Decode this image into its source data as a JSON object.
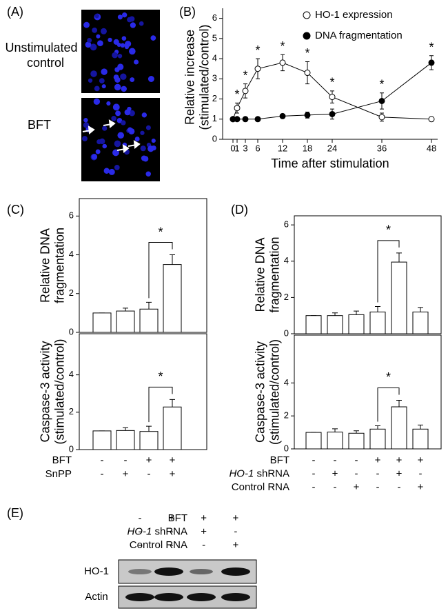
{
  "panel_labels": [
    "(A)",
    "(B)",
    "(C)",
    "(D)",
    "(E)"
  ],
  "panel_a": {
    "rows": [
      {
        "label_lines": [
          "Unstimulated",
          "control"
        ]
      },
      {
        "label_lines": [
          "BFT"
        ]
      }
    ]
  },
  "chart_data": [
    {
      "type": "line",
      "xlabel": "Time after stimulation",
      "ylabel_lines": [
        "Relative increase",
        "(stimulated/control)"
      ],
      "x": [
        0,
        1,
        3,
        6,
        12,
        18,
        24,
        36,
        48
      ],
      "xlim": [
        -2.5,
        49.5
      ],
      "xticks": [
        0,
        1,
        3,
        6,
        12,
        18,
        24,
        36,
        48
      ],
      "ylim": [
        0,
        6.5
      ],
      "yticks": [
        0,
        1,
        2,
        3,
        4,
        5,
        6
      ],
      "legend": "top-right",
      "series": [
        {
          "name": "HO-1 expression",
          "marker": "open-circle",
          "color": "#000000",
          "values": [
            1,
            1.55,
            2.4,
            3.5,
            3.8,
            3.3,
            2.1,
            1.1,
            1.0
          ],
          "errors": [
            0.05,
            0.25,
            0.35,
            0.5,
            0.4,
            0.55,
            0.3,
            0.2,
            0.1
          ],
          "labels": [
            null,
            "*",
            "*",
            "*",
            "*",
            "*",
            "*",
            null,
            null
          ]
        },
        {
          "name": "DNA fragmentation",
          "marker": "filled-circle",
          "color": "#000000",
          "values": [
            1,
            1.0,
            1.0,
            1.0,
            1.15,
            1.2,
            1.25,
            1.9,
            3.8
          ],
          "errors": [
            0.05,
            0.05,
            0.08,
            0.1,
            0.1,
            0.15,
            0.25,
            0.4,
            0.35
          ],
          "labels": [
            null,
            null,
            null,
            null,
            null,
            null,
            null,
            "*",
            "*"
          ]
        }
      ]
    },
    {
      "type": "bar",
      "ylabel_lines": [
        "Relative DNA",
        "fragmentation"
      ],
      "color": "#ffffff",
      "values": [
        1,
        1.1,
        1.2,
        3.5
      ],
      "errors": [
        0,
        0.15,
        0.35,
        0.5
      ],
      "significance": [
        null,
        null,
        null,
        "*"
      ],
      "ylim": [
        0,
        6.9
      ],
      "yticks": [
        0,
        2,
        4,
        6
      ]
    },
    {
      "type": "bar",
      "ylabel_lines": [
        "Caspase-3 activity",
        "(stimulated/control)"
      ],
      "color": "#ffffff",
      "values": [
        1,
        1.02,
        0.97,
        2.28
      ],
      "errors": [
        0,
        0.15,
        0.28,
        0.4
      ],
      "significance": [
        null,
        null,
        null,
        "*"
      ],
      "ylim": [
        0,
        6.2
      ],
      "yticks": [
        0,
        2,
        4
      ]
    },
    {
      "type": "bar",
      "ylabel_lines": [
        "Relative DNA",
        "fragmentation"
      ],
      "color": "#ffffff",
      "values": [
        1,
        1,
        1.05,
        1.2,
        3.95,
        1.2
      ],
      "errors": [
        0,
        0.15,
        0.2,
        0.3,
        0.5,
        0.25
      ],
      "significance": [
        null,
        null,
        null,
        null,
        "*",
        null
      ],
      "ylim": [
        0,
        6.5
      ],
      "yticks": [
        0,
        2,
        4,
        6
      ]
    },
    {
      "type": "bar",
      "ylabel_lines": [
        "Caspase-3 activity",
        "(stimulated/control)"
      ],
      "color": "#ffffff",
      "values": [
        1,
        1.02,
        0.95,
        1.2,
        2.55,
        1.2
      ],
      "errors": [
        0,
        0.2,
        0.15,
        0.2,
        0.4,
        0.25
      ],
      "significance": [
        null,
        null,
        null,
        null,
        "*",
        null
      ],
      "ylim": [
        0,
        6.9
      ],
      "yticks": [
        0,
        2,
        4
      ]
    }
  ],
  "panel_c_conditions": {
    "rows": [
      {
        "label": "BFT",
        "signs": [
          "-",
          "-",
          "+",
          "+"
        ]
      },
      {
        "label": "SnPP",
        "signs": [
          "-",
          "+",
          "-",
          "+"
        ]
      }
    ]
  },
  "panel_d_conditions": {
    "rows": [
      {
        "label": "BFT",
        "signs": [
          "-",
          "-",
          "-",
          "+",
          "+",
          "+"
        ]
      },
      {
        "label_italic": "HO-1",
        "label": "shRNA",
        "signs": [
          "-",
          "+",
          "-",
          "-",
          "+",
          "-"
        ]
      },
      {
        "label": "Control RNA",
        "signs": [
          "-",
          "-",
          "+",
          "-",
          "-",
          "+"
        ]
      }
    ]
  },
  "panel_e": {
    "rows": [
      {
        "label": "BFT",
        "signs": [
          "-",
          "+",
          "+",
          "+"
        ]
      },
      {
        "label_italic": "HO-1",
        "label": "shRNA",
        "signs": [
          "-",
          "-",
          "+",
          "-"
        ]
      },
      {
        "label": "Control RNA",
        "signs": [
          "-",
          "-",
          "-",
          "+"
        ]
      }
    ],
    "blots": [
      "HO-1",
      "Actin"
    ]
  }
}
